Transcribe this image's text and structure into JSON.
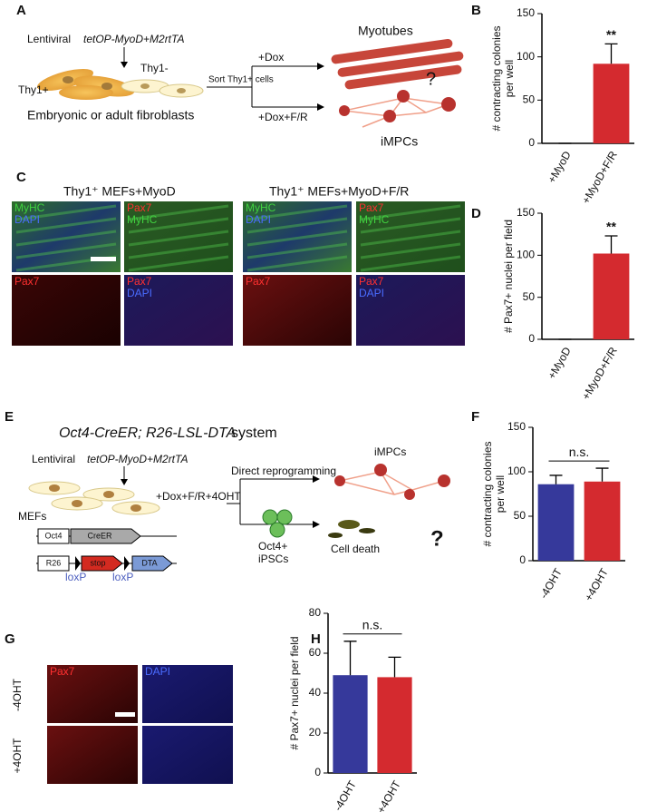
{
  "panel_letters": [
    "A",
    "B",
    "C",
    "D",
    "E",
    "F",
    "G",
    "H"
  ],
  "panel_a": {
    "vector_prefix": "Lentiviral",
    "vector": "tetOP-MyoD+M2rtTA",
    "cell_neg": "Thy1-",
    "cell_pos": "Thy1+",
    "sort": "Sort Thy1+ cells",
    "dox": "+Dox",
    "dox_fr": "+Dox+F/R",
    "myotubes": "Myotubes",
    "question": "?",
    "fibroblasts": "Embryonic or adult fibroblasts",
    "impcs": "iMPCs"
  },
  "panel_c": {
    "headers": [
      "Thy1⁺  MEFs+MyoD",
      "Thy1⁺  MEFs+MyoD+F/R"
    ],
    "images": [
      [
        {
          "text": "MyHC",
          "color": "#3fd13f"
        },
        {
          "text": "DAPI",
          "color": "#4a6cff"
        }
      ],
      [
        {
          "text": "Pax7",
          "color": "#ff3030"
        },
        {
          "text": "MyHC",
          "color": "#3fd13f"
        }
      ],
      [
        {
          "text": "MyHC",
          "color": "#3fd13f"
        },
        {
          "text": "DAPI",
          "color": "#4a6cff"
        }
      ],
      [
        {
          "text": "Pax7",
          "color": "#ff3030"
        },
        {
          "text": "MyHC",
          "color": "#3fd13f"
        }
      ],
      [
        {
          "text": "Pax7",
          "color": "#ff3030"
        }
      ],
      [
        {
          "text": "Pax7",
          "color": "#ff3030"
        },
        {
          "text": "DAPI",
          "color": "#4a6cff"
        }
      ],
      [
        {
          "text": "Pax7",
          "color": "#ff3030"
        }
      ],
      [
        {
          "text": "Pax7",
          "color": "#ff3030"
        },
        {
          "text": "DAPI",
          "color": "#4a6cff"
        }
      ]
    ]
  },
  "panel_e": {
    "title_italic": "Oct4-CreER; R26-LSL-DTA",
    "title_rest": "system",
    "vector_prefix": "Lentiviral",
    "vector": "tetOP-MyoD+M2rtTA",
    "mefs": "MEFs",
    "treatment": "+Dox+F/R+4OHT",
    "direct": "Direct reprogramming",
    "impcs": "iMPCs",
    "ipsc_lines": [
      "Oct4+",
      "iPSCs"
    ],
    "death": "Cell death",
    "question": "?",
    "construct1": [
      "Oct4",
      "CreER"
    ],
    "construct2": [
      "R26",
      "stop",
      "DTA"
    ],
    "loxp": [
      "loxP",
      "loxP"
    ]
  },
  "panel_g": {
    "stains": [
      {
        "text": "Pax7",
        "color": "#ff3030"
      },
      {
        "text": "DAPI",
        "color": "#4a6cff"
      }
    ],
    "rows": [
      "-4OHT",
      "+4OHT"
    ]
  },
  "chart_data": [
    {
      "type": "bar",
      "categories": [
        "+MyoD",
        "+MyoD+F/R"
      ],
      "values": [
        0,
        92
      ],
      "errors": [
        0,
        23
      ],
      "colors": [
        "#d42a2f",
        "#d42a2f"
      ],
      "ylabel": [
        "# contracting colonies",
        "per well"
      ],
      "ylim": [
        0,
        150
      ],
      "yticks": [
        0,
        50,
        100,
        150
      ],
      "annotation": "**"
    },
    {
      "type": "bar",
      "categories": [
        "+MyoD",
        "+MyoD+F/R"
      ],
      "values": [
        0,
        102
      ],
      "errors": [
        0,
        21
      ],
      "colors": [
        "#d42a2f",
        "#d42a2f"
      ],
      "ylabel": [
        "# Pax7+ nuclei per field"
      ],
      "ylim": [
        0,
        150
      ],
      "yticks": [
        0,
        50,
        100,
        150
      ],
      "annotation": "**"
    },
    {
      "type": "bar",
      "categories": [
        "-4OHT",
        "+4OHT"
      ],
      "values": [
        86,
        89
      ],
      "errors": [
        10,
        15
      ],
      "colors": [
        "#36399b",
        "#d42a2f"
      ],
      "ylabel": [
        "# contracting colonies",
        "per well"
      ],
      "ylim": [
        0,
        150
      ],
      "yticks": [
        0,
        50,
        100,
        150
      ],
      "annotation": "n.s."
    },
    {
      "type": "bar",
      "categories": [
        "-4OHT",
        "+4OHT"
      ],
      "values": [
        49,
        48
      ],
      "errors": [
        17,
        10
      ],
      "colors": [
        "#36399b",
        "#d42a2f"
      ],
      "ylabel": [
        "# Pax7+ nuclei per field"
      ],
      "ylim": [
        0,
        80
      ],
      "yticks": [
        0,
        20,
        40,
        60,
        80
      ],
      "annotation": "n.s."
    }
  ]
}
